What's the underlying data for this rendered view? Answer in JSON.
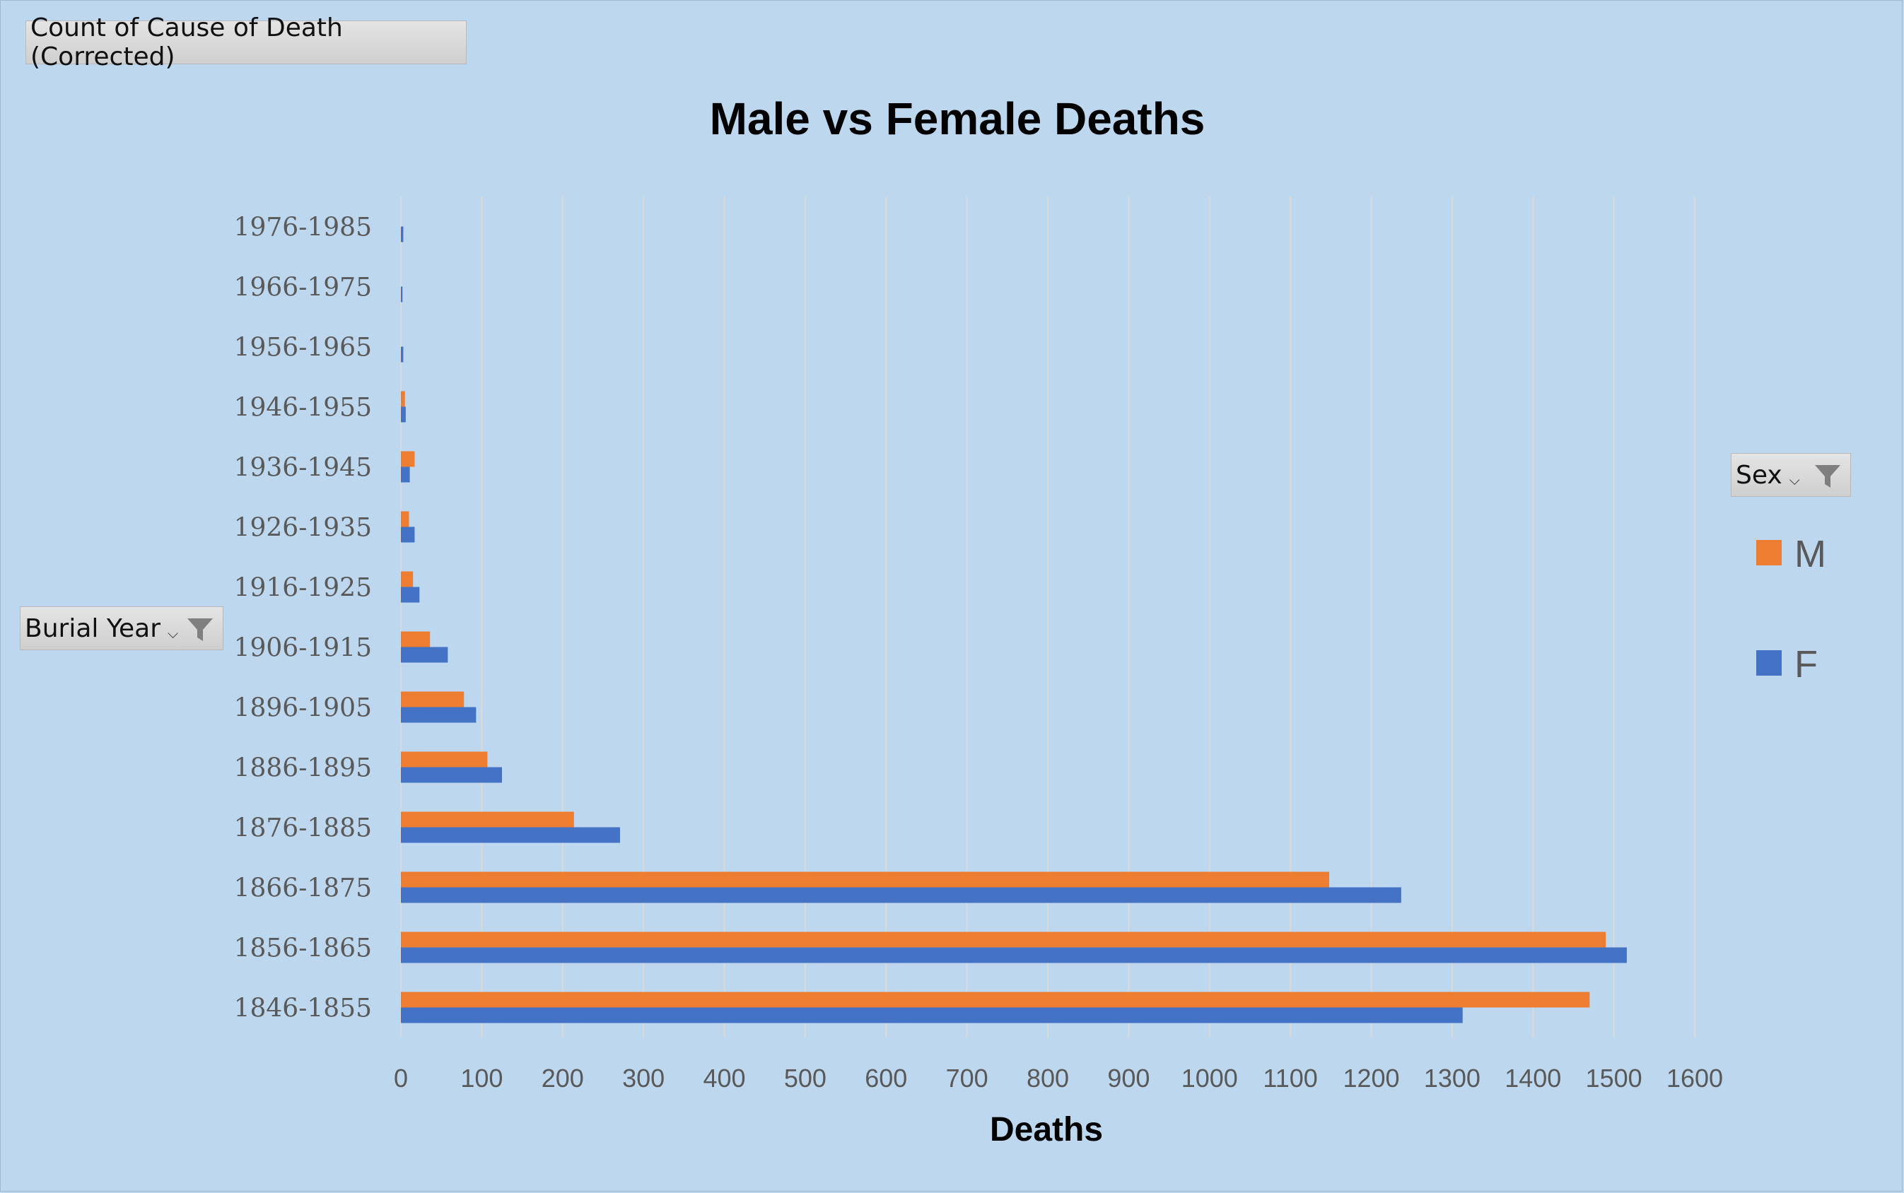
{
  "value_field_button": {
    "label": "Count of Cause of Death (Corrected)"
  },
  "row_field_button": {
    "label": "Burial Year",
    "icons": [
      "dropdown-arrow-icon",
      "filter-icon"
    ]
  },
  "series_field_button": {
    "label": "Sex",
    "icons": [
      "dropdown-arrow-icon",
      "filter-icon"
    ]
  },
  "chart_data": {
    "type": "bar",
    "orientation": "horizontal",
    "title": "Male vs Female Deaths",
    "xlabel": "Deaths",
    "ylabel": "",
    "categories": [
      "1846-1855",
      "1856-1865",
      "1866-1875",
      "1876-1885",
      "1886-1895",
      "1896-1905",
      "1906-1915",
      "1916-1925",
      "1926-1935",
      "1936-1945",
      "1946-1955",
      "1956-1965",
      "1966-1975",
      "1976-1985"
    ],
    "series": [
      {
        "name": "M",
        "color": "#ed7d31",
        "values": [
          1470,
          1490,
          1148,
          214,
          107,
          78,
          36,
          15,
          10,
          17,
          5,
          0,
          0,
          0
        ]
      },
      {
        "name": "F",
        "color": "#4472c4",
        "values": [
          1313,
          1516,
          1237,
          271,
          125,
          93,
          58,
          23,
          17,
          11,
          6,
          3,
          2,
          3
        ]
      }
    ],
    "xlim": [
      0,
      1600
    ],
    "xticks": [
      0,
      100,
      200,
      300,
      400,
      500,
      600,
      700,
      800,
      900,
      1000,
      1100,
      1200,
      1300,
      1400,
      1500,
      1600
    ],
    "grid": true,
    "legend_position": "right",
    "colors": {
      "background": "#bdd7ee",
      "gridline": "#d9d9d9",
      "text": "#595959"
    }
  }
}
